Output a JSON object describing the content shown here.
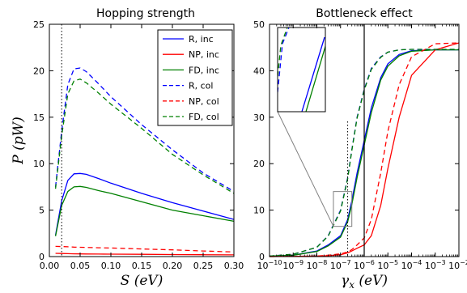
{
  "chart_data": [
    {
      "type": "line",
      "title": "Hopping strength",
      "xlabel": "S (eV)",
      "ylabel": "P (pW)",
      "xlim": [
        0.0,
        0.3
      ],
      "ylim": [
        0,
        25
      ],
      "x_tick_labels": [
        "0.00",
        "0.05",
        "0.10",
        "0.15",
        "0.20",
        "0.25",
        "0.30"
      ],
      "y_tick_labels": [
        "0",
        "5",
        "10",
        "15",
        "20",
        "25"
      ],
      "grid": false,
      "legend": "top-right",
      "reference_vline_x": 0.02,
      "x": [
        0.01,
        0.02,
        0.03,
        0.04,
        0.05,
        0.06,
        0.08,
        0.1,
        0.15,
        0.2,
        0.25,
        0.3
      ],
      "series": [
        {
          "name": "R, inc",
          "color": "#0000ff",
          "dash": "solid",
          "values": [
            2.3,
            6.0,
            8.2,
            8.9,
            8.95,
            8.85,
            8.4,
            7.9,
            6.8,
            5.8,
            4.9,
            4.0
          ]
        },
        {
          "name": "NP, inc",
          "color": "#ff0000",
          "dash": "solid",
          "values": [
            0.35,
            0.33,
            0.31,
            0.3,
            0.29,
            0.28,
            0.27,
            0.26,
            0.24,
            0.22,
            0.2,
            0.18
          ]
        },
        {
          "name": "FD, inc",
          "color": "#008000",
          "dash": "solid",
          "values": [
            2.2,
            5.5,
            7.0,
            7.5,
            7.55,
            7.45,
            7.1,
            6.8,
            5.9,
            5.0,
            4.4,
            3.8
          ]
        },
        {
          "name": "R, col",
          "color": "#0000ff",
          "dash": "dashed",
          "values": [
            7.5,
            13.5,
            18.5,
            20.2,
            20.3,
            19.9,
            18.6,
            17.2,
            14.2,
            11.5,
            9.0,
            7.0
          ]
        },
        {
          "name": "NP, col",
          "color": "#ff0000",
          "dash": "dashed",
          "values": [
            1.1,
            1.08,
            1.05,
            1.02,
            1.0,
            0.98,
            0.95,
            0.92,
            0.82,
            0.72,
            0.6,
            0.5
          ]
        },
        {
          "name": "FD, col",
          "color": "#008000",
          "dash": "dashed",
          "values": [
            7.3,
            13.0,
            17.5,
            18.9,
            19.1,
            18.7,
            17.6,
            16.4,
            13.8,
            11.0,
            8.8,
            6.8
          ]
        }
      ]
    },
    {
      "type": "line",
      "title": "Bottleneck effect",
      "xlabel": "γx (eV)",
      "ylabel": "",
      "x_scale": "log",
      "xlim": [
        1e-10,
        0.01
      ],
      "ylim": [
        0,
        50
      ],
      "x_tick_labels": [
        "10-10",
        "10-9",
        "10-8",
        "10-7",
        "10-6",
        "10-5",
        "10-4",
        "10-3",
        "10-2"
      ],
      "y_tick_labels": [
        "0",
        "10",
        "20",
        "30",
        "40",
        "50"
      ],
      "grid": false,
      "reference_vline_x": 1e-06,
      "reference_dotted_vline_x": 2e-07,
      "inset": "zoom of region near γx ≈ 1e-7, P ≈ 5–10",
      "x": [
        1e-10,
        1e-09,
        1e-08,
        3e-08,
        1e-07,
        2e-07,
        3e-07,
        5e-07,
        1e-06,
        2e-06,
        5e-06,
        1e-05,
        3e-05,
        0.0001,
        0.001,
        0.01
      ],
      "series": [
        {
          "color": "#0000ff",
          "dash": "solid",
          "values": [
            0.1,
            0.3,
            1.2,
            2.5,
            4.5,
            8.0,
            12.0,
            18.0,
            25.0,
            32.0,
            38.5,
            41.5,
            43.5,
            44.3,
            44.5,
            44.5
          ]
        },
        {
          "color": "#008000",
          "dash": "solid",
          "values": [
            0.1,
            0.3,
            1.1,
            2.3,
            4.2,
            7.5,
            11.2,
            17.0,
            24.0,
            31.0,
            38.0,
            41.0,
            43.2,
            44.2,
            44.5,
            44.5
          ]
        },
        {
          "color": "#ff0000",
          "dash": "solid",
          "values": [
            0.0,
            0.05,
            0.1,
            0.2,
            0.4,
            0.8,
            1.2,
            1.8,
            2.5,
            4.5,
            11.0,
            19.0,
            30.0,
            39.0,
            44.5,
            46.0
          ]
        },
        {
          "color": "#0000ff",
          "dash": "dashed",
          "values": [
            0.1,
            0.5,
            2.0,
            4.5,
            10.0,
            17.0,
            23.0,
            30.0,
            36.0,
            40.5,
            43.0,
            44.0,
            44.5,
            44.6,
            44.6,
            44.6
          ]
        },
        {
          "color": "#008000",
          "dash": "dashed",
          "values": [
            0.1,
            0.5,
            2.0,
            4.4,
            9.8,
            16.8,
            22.8,
            29.8,
            35.8,
            40.3,
            42.9,
            44.0,
            44.5,
            44.6,
            44.6,
            44.6
          ]
        },
        {
          "color": "#ff0000",
          "dash": "dashed",
          "values": [
            0.0,
            0.05,
            0.1,
            0.3,
            0.6,
            1.0,
            1.5,
            2.5,
            4.0,
            8.0,
            18.0,
            27.0,
            37.0,
            43.0,
            45.8,
            46.0
          ]
        }
      ]
    }
  ]
}
